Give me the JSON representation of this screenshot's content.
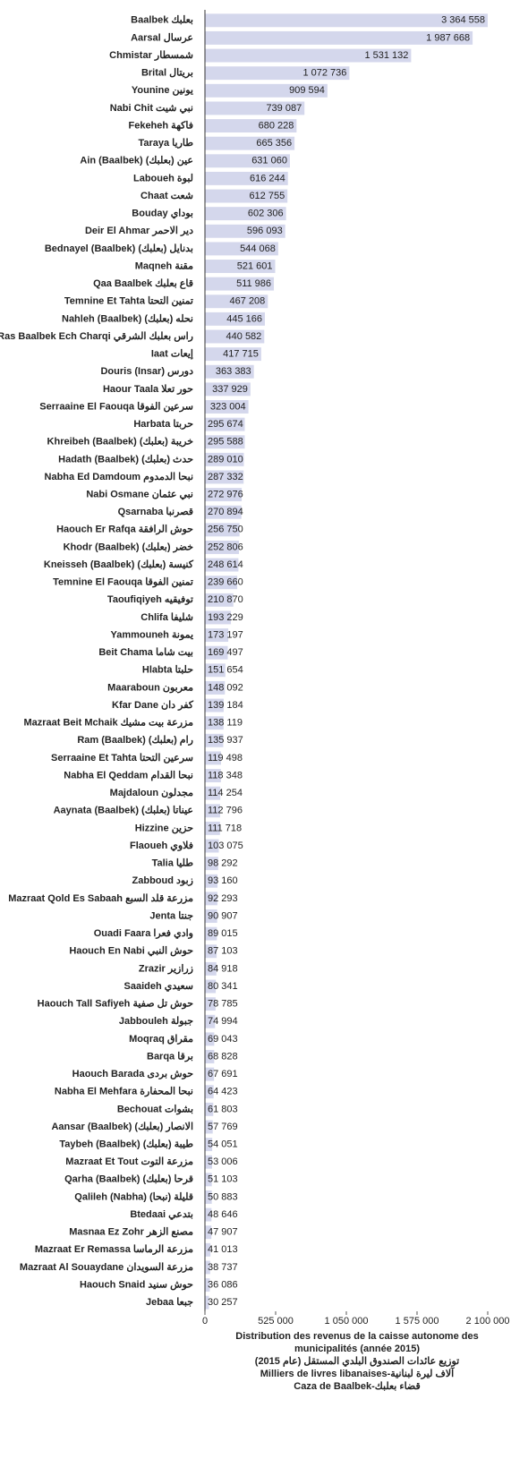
{
  "chart_data": {
    "type": "hbar",
    "categories": [
      "Baalbek بعلبك",
      "Aarsal عرسال",
      "Chmistar شمسطار",
      "Brital بريتال",
      "Younine يونين",
      "Nabi Chit نبي شيت",
      "Fekeheh فاكهة",
      "Taraya طاريا",
      "Ain (Baalbek) عين (بعلبك)",
      "Laboueh لبوة",
      "Chaat شعت",
      "Bouday بوداي",
      "Deir El Ahmar دير الاحمر",
      "Bednayel (Baalbek) بدنايل (بعلبك)",
      "Maqneh مقنة",
      "Qaa Baalbek قاع بعلبك",
      "Temnine Et Tahta تمنين التحتا",
      "Nahleh (Baalbek) نحله (بعلبك)",
      "Ras Baalbek Ech Charqi راس بعلبك الشرقي",
      "Iaat إيعات",
      "Douris (Insar) دورس",
      "Haour Taala حور تعلا",
      "Serraaine El Faouqa سرعين الفوقا",
      "Harbata حربتا",
      "Khreibeh (Baalbek) خريبة (بعلبك)",
      "Hadath (Baalbek) حدث (بعلبك)",
      "Nabha Ed Damdoum نبحا الدمدوم",
      "Nabi Osmane نبي عثمان",
      "Qsarnaba قصرنبا",
      "Haouch Er Rafqa حوش الرافقة",
      "Khodr (Baalbek) خضر (بعلبك)",
      "Kneisseh (Baalbek) كنيسة (بعلبك)",
      "Temnine El Faouqa تمنين الفوقا",
      "Taoufiqiyeh توفيقيه",
      "Chlifa شليفا",
      "Yammouneh يمونة",
      "Beit Chama بيت شاما",
      "Hlabta حلبتا",
      "Maaraboun معربون",
      "Kfar Dane كفر دان",
      "Mazraat Beit Mchaik مزرعة بيت مشيك",
      "Ram (Baalbek) رام (بعلبك)",
      "Serraaine Et Tahta سرعين التحتا",
      "Nabha El Qeddam نبحا القدام",
      "Majdaloun مجدلون",
      "Aaynata (Baalbek) عيناتا (بعلبك)",
      "Hizzine حزين",
      "Flaoueh فلاوي",
      "Talia طليا",
      "Zabboud زبود",
      "Mazraat Qold Es Sabaah مزرعة قلد السبع",
      "Jenta جنتا",
      "Ouadi Faara وادي فعرا",
      "Haouch En Nabi حوش النبي",
      "Zrazir زرازير",
      "Saaideh سعيدي",
      "Haouch Tall Safiyeh حوش تل صفية",
      "Jabbouleh جبولة",
      "Moqraq مقراق",
      "Barqa برقا",
      "Haouch Barada حوش بردى",
      "Nabha El Mehfara نبحا المحفارة",
      "Bechouat بشوات",
      "Aansar (Baalbek) الانصار (بعلبك)",
      "Taybeh (Baalbek) طيبة (بعلبك)",
      "Mazraat Et Tout مزرعة التوت",
      "Qarha (Baalbek) قرحا (بعلبك)",
      "Qalileh (Nabha) قليلة (نبحا)",
      "Btedaai بتدعي",
      "Masnaa Ez Zohr مصنع الزهر",
      "Mazraat Er Remassa مزرعة الرماسا",
      "Mazraat Al Souaydane مزرعة السويدان",
      "Haouch Snaid حوش سنيد",
      "Jebaa جبعا"
    ],
    "values": [
      3364558,
      1987668,
      1531132,
      1072736,
      909594,
      739087,
      680228,
      665356,
      631060,
      616244,
      612755,
      602306,
      596093,
      544068,
      521601,
      511986,
      467208,
      445166,
      440582,
      417715,
      363383,
      337929,
      323004,
      295674,
      295588,
      289010,
      287332,
      272976,
      270894,
      256750,
      252806,
      248614,
      239660,
      210870,
      193229,
      173197,
      169497,
      151654,
      148092,
      139184,
      138119,
      135937,
      119498,
      118348,
      114254,
      112796,
      111718,
      103075,
      98292,
      93160,
      92293,
      90907,
      89015,
      87103,
      84918,
      80341,
      78785,
      74994,
      69043,
      68828,
      67691,
      64423,
      61803,
      57769,
      54051,
      53006,
      51103,
      50883,
      48646,
      47907,
      41013,
      38737,
      36086,
      30257
    ],
    "value_labels": [
      "3 364 558",
      "1 987 668",
      "1 531 132",
      "1 072 736",
      "909 594",
      "739 087",
      "680 228",
      "665 356",
      "631 060",
      "616 244",
      "612 755",
      "602 306",
      "596 093",
      "544 068",
      "521 601",
      "511 986",
      "467 208",
      "445 166",
      "440 582",
      "417 715",
      "363 383",
      "337 929",
      "323 004",
      "295 674",
      "295 588",
      "289 010",
      "287 332",
      "272 976",
      "270 894",
      "256 750",
      "252 806",
      "248 614",
      "239 660",
      "210 870",
      "193 229",
      "173 197",
      "169 497",
      "151 654",
      "148 092",
      "139 184",
      "138 119",
      "135 937",
      "119 498",
      "118 348",
      "114 254",
      "112 796",
      "111 718",
      "103 075",
      "98 292",
      "93 160",
      "92 293",
      "90 907",
      "89 015",
      "87 103",
      "84 918",
      "80 341",
      "78 785",
      "74 994",
      "69 043",
      "68 828",
      "67 691",
      "64 423",
      "61 803",
      "57 769",
      "54 051",
      "53 006",
      "51 103",
      "50 883",
      "48 646",
      "47 907",
      "41 013",
      "38 737",
      "36 086",
      "30 257"
    ],
    "color": "#d4d7ec",
    "xlim": [
      0,
      2100000
    ],
    "xticks": [
      0,
      {
        "value": 525000,
        "label": "525 000"
      },
      {
        "value": 1050000,
        "label": "1 050 000"
      },
      {
        "value": 1575000,
        "label": "1 575 000"
      },
      {
        "value": 2100000,
        "label": "2 100 000"
      }
    ],
    "xlabel": [
      "Distribution des revenus de la caisse autonome des municipalités (année 2015)",
      "توزيع عائدات الصندوق البلدي المستقل (عام 2015)",
      "Milliers de livres libanaises-آلاف ليرة لبنانية",
      "Caza de Baalbek-قضاء بعلبك"
    ]
  }
}
